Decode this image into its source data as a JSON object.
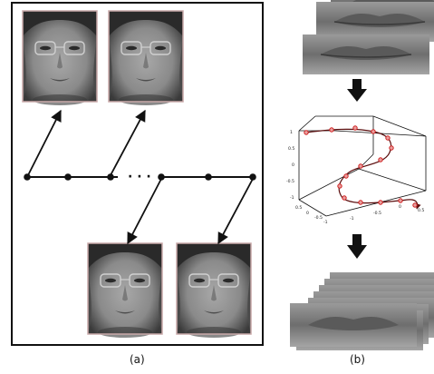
{
  "panels": {
    "a": {
      "caption": "(a)",
      "ellipsis": "· · ·"
    },
    "b": {
      "caption": "(b)"
    }
  },
  "plot3d": {
    "z_ticks": [
      "1",
      "0.5",
      "0",
      "-0.5",
      "-1"
    ],
    "x_ticks": [
      "0.5",
      "0",
      "-0.5",
      "-1"
    ],
    "y_ticks": [
      "-1",
      "-0.5",
      "0",
      "0.5"
    ]
  },
  "colors": {
    "frame_border": "#c9a9a9",
    "trajectory": "#5a0d0d",
    "sample_point": "#e03030",
    "arrow": "#111111"
  }
}
